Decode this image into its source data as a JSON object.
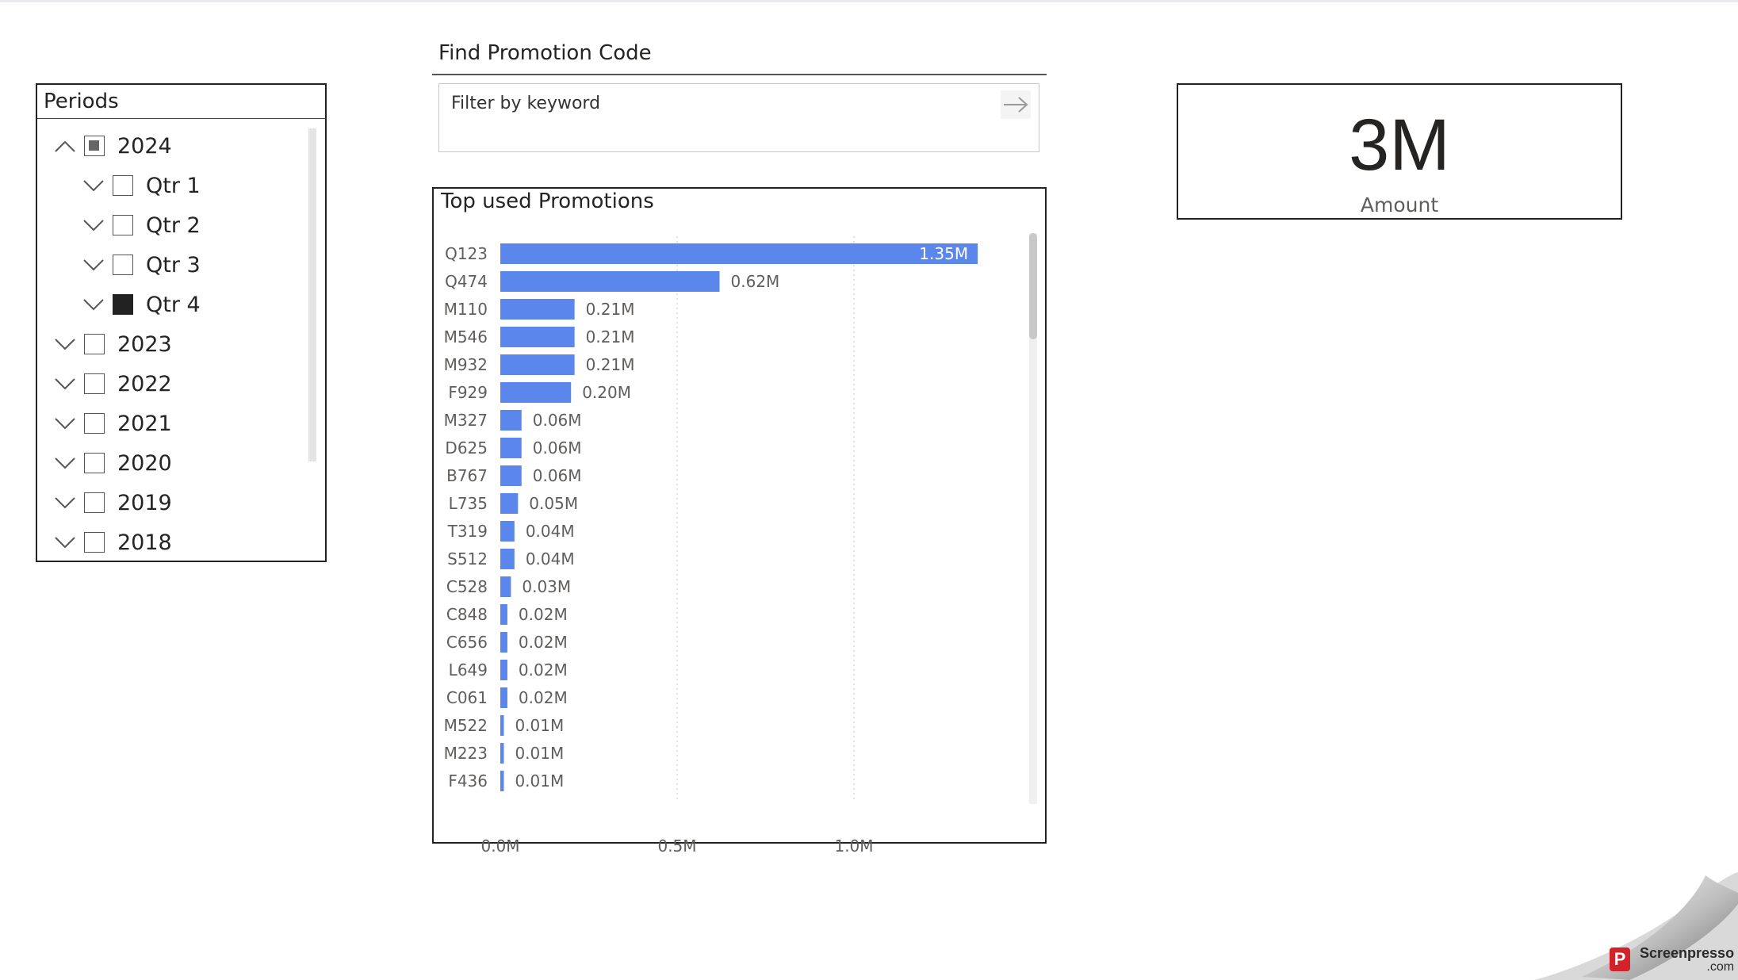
{
  "slicer": {
    "title": "Periods",
    "items": [
      {
        "label": "2024",
        "level": 0,
        "state": "partial",
        "expanded": true
      },
      {
        "label": "Qtr 1",
        "level": 1,
        "state": "unchecked",
        "expanded": false
      },
      {
        "label": "Qtr 2",
        "level": 1,
        "state": "unchecked",
        "expanded": false
      },
      {
        "label": "Qtr 3",
        "level": 1,
        "state": "unchecked",
        "expanded": false
      },
      {
        "label": "Qtr 4",
        "level": 1,
        "state": "checked",
        "expanded": false
      },
      {
        "label": "2023",
        "level": 0,
        "state": "unchecked",
        "expanded": false
      },
      {
        "label": "2022",
        "level": 0,
        "state": "unchecked",
        "expanded": false
      },
      {
        "label": "2021",
        "level": 0,
        "state": "unchecked",
        "expanded": false
      },
      {
        "label": "2020",
        "level": 0,
        "state": "unchecked",
        "expanded": false
      },
      {
        "label": "2019",
        "level": 0,
        "state": "unchecked",
        "expanded": false
      },
      {
        "label": "2018",
        "level": 0,
        "state": "unchecked",
        "expanded": false
      }
    ]
  },
  "search": {
    "title": "Find Promotion Code",
    "placeholder": "Filter by keyword",
    "submit_icon": "arrow-right-icon"
  },
  "card": {
    "value": "3M",
    "label": "Amount"
  },
  "chart_data": {
    "type": "bar",
    "orientation": "horizontal",
    "title": "Top used Promotions",
    "categories": [
      "Q123",
      "Q474",
      "M110",
      "M546",
      "M932",
      "F929",
      "M327",
      "D625",
      "B767",
      "L735",
      "T319",
      "S512",
      "C528",
      "C848",
      "C656",
      "L649",
      "C061",
      "M522",
      "M223",
      "F436"
    ],
    "values": [
      1.35,
      0.62,
      0.21,
      0.21,
      0.21,
      0.2,
      0.06,
      0.06,
      0.06,
      0.05,
      0.04,
      0.04,
      0.03,
      0.02,
      0.02,
      0.02,
      0.02,
      0.01,
      0.01,
      0.01
    ],
    "data_labels": [
      "1.35M",
      "0.62M",
      "0.21M",
      "0.21M",
      "0.21M",
      "0.20M",
      "0.06M",
      "0.06M",
      "0.06M",
      "0.05M",
      "0.04M",
      "0.04M",
      "0.03M",
      "0.02M",
      "0.02M",
      "0.02M",
      "0.02M",
      "0.01M",
      "0.01M",
      "0.01M"
    ],
    "x_ticks": [
      0,
      0.5,
      1.0
    ],
    "x_tick_labels": [
      "0.0M",
      "0.5M",
      "1.0M"
    ],
    "xlim": [
      0,
      1.4
    ],
    "grid": "vertical dotted",
    "bar_color": "#5b86ec",
    "xlabel": "",
    "ylabel": ""
  },
  "watermark": {
    "brand": "Screenpresso",
    "domain": ".com"
  }
}
